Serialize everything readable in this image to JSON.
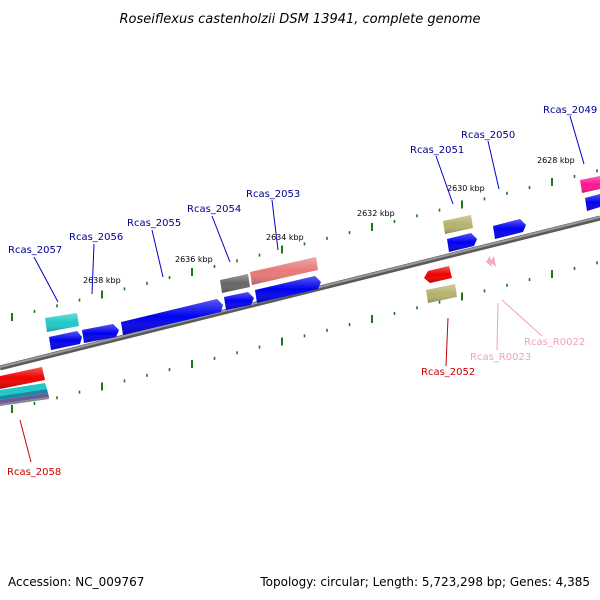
{
  "title": "Roseiflexus castenholzii DSM 13941, complete genome",
  "footer": {
    "accession": "Accession: NC_009767",
    "topology": "Topology: circular; Length: 5,723,298 bp; Genes: 4,385"
  },
  "scale_labels": [
    "2638 kbp",
    "2636 kbp",
    "2634 kbp",
    "2632 kbp",
    "2630 kbp",
    "2628 kbp"
  ],
  "colors": {
    "backbone": "#888888",
    "tick": "#1a7a1a",
    "label_blue": "#00008b",
    "label_red": "#cc0000",
    "label_pink": "#f0a0c0"
  },
  "genes": [
    {
      "name": "Rcas_2049",
      "color": "#ff1493"
    },
    {
      "name": "Rcas_2050",
      "color": "#0000ee"
    },
    {
      "name": "Rcas_2051",
      "color": "#b5b26c"
    },
    {
      "name": "Rcas_2052",
      "color": "#ee0000"
    },
    {
      "name": "Rcas_2053",
      "color": "#e87878"
    },
    {
      "name": "Rcas_2054",
      "color": "#666666"
    },
    {
      "name": "Rcas_2055",
      "color": "#0000ee"
    },
    {
      "name": "Rcas_2056",
      "color": "#0000ee"
    },
    {
      "name": "Rcas_2057",
      "color": "#20c8c8"
    },
    {
      "name": "Rcas_2058",
      "color": "#ee0000"
    },
    {
      "name": "Rcas_R0022",
      "color": "#f4a8c8"
    },
    {
      "name": "Rcas_R0023",
      "color": "#f4a8c8"
    }
  ]
}
